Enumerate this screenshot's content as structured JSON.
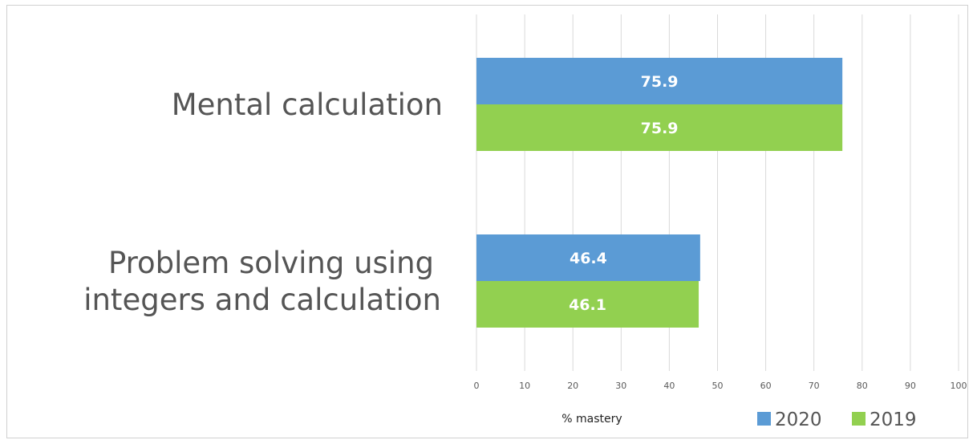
{
  "chart_data": {
    "type": "bar",
    "orientation": "horizontal",
    "categories": [
      "Mental calculation",
      "Problem solving using integers and calculation"
    ],
    "category_lines": [
      [
        "Mental calculation"
      ],
      [
        "Problem solving using",
        "integers and calculation"
      ]
    ],
    "series": [
      {
        "name": "2020",
        "values": [
          75.9,
          46.4
        ],
        "color": "#5b9bd5"
      },
      {
        "name": "2019",
        "values": [
          75.9,
          46.1
        ],
        "color": "#92d050"
      }
    ],
    "xlabel": "% mastery",
    "ylabel": "",
    "xlim": [
      0,
      100
    ],
    "xticks": [
      0,
      10,
      20,
      30,
      40,
      50,
      60,
      70,
      80,
      90,
      100
    ],
    "grid": true,
    "legend_position": "bottom-right",
    "data_labels": true
  }
}
